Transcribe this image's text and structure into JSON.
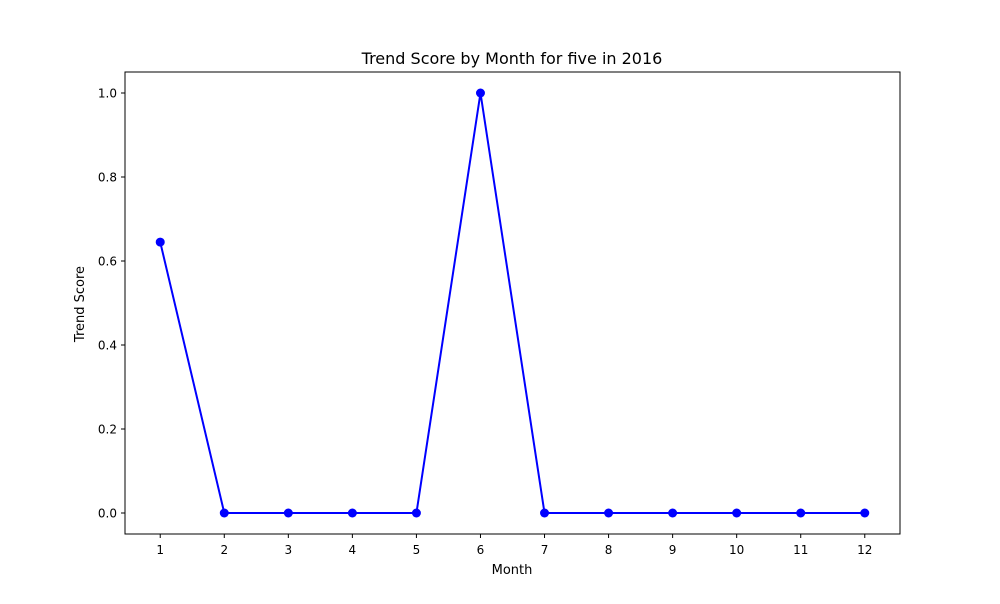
{
  "chart_data": {
    "type": "line",
    "title": "Trend Score by Month for five in 2016",
    "xlabel": "Month",
    "ylabel": "Trend Score",
    "x": [
      1,
      2,
      3,
      4,
      5,
      6,
      7,
      8,
      9,
      10,
      11,
      12
    ],
    "series": [
      {
        "values": [
          0.645,
          0.0,
          0.0,
          0.0,
          0.0,
          1.0,
          0.0,
          0.0,
          0.0,
          0.0,
          0.0,
          0.0
        ],
        "color": "#0000ff",
        "marker": "circle"
      }
    ],
    "xlim": [
      0.45,
      12.55
    ],
    "ylim": [
      -0.05,
      1.05
    ],
    "xticks": [
      1,
      2,
      3,
      4,
      5,
      6,
      7,
      8,
      9,
      10,
      11,
      12
    ],
    "xtick_labels": [
      "1",
      "2",
      "3",
      "4",
      "5",
      "6",
      "7",
      "8",
      "9",
      "10",
      "11",
      "12"
    ],
    "yticks": [
      0.0,
      0.2,
      0.4,
      0.6,
      0.8,
      1.0
    ],
    "ytick_labels": [
      "0.0",
      "0.2",
      "0.4",
      "0.6",
      "0.8",
      "1.0"
    ],
    "grid": false,
    "legend": "none"
  }
}
